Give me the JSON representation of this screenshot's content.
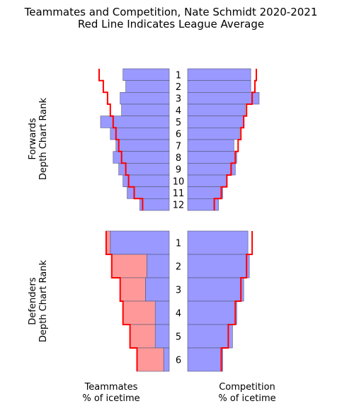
{
  "titles": {
    "line1": "Teammates and Competition, Nate Schmidt 2020-2021",
    "line2": "Red Line Indicates League Average"
  },
  "labels": {
    "forwards_line1": "Forwards",
    "forwards_line2": "Depth Chart Rank",
    "defenders_line1": "Defenders",
    "defenders_line2": "Depth Chart Rank",
    "teammates_line1": "Teammates",
    "teammates_line2": "% of icetime",
    "competition_line1": "Competition",
    "competition_line2": "% of icetime"
  },
  "colors": {
    "bar": "#9999ff",
    "bar_edge": "#555577",
    "excess": "#ff9999",
    "average_line": "#ff0000"
  },
  "chart_data": [
    {
      "type": "bar",
      "panel": "forwards",
      "categories": [
        "1",
        "2",
        "3",
        "4",
        "5",
        "6",
        "7",
        "8",
        "9",
        "10",
        "11",
        "12"
      ],
      "xlim": [
        0,
        1
      ],
      "series": [
        {
          "side": "teammates",
          "values": [
            0.33,
            0.31,
            0.35,
            0.34,
            0.49,
            0.42,
            0.38,
            0.4,
            0.36,
            0.33,
            0.3,
            0.21
          ]
        },
        {
          "side": "competition",
          "values": [
            0.45,
            0.45,
            0.51,
            0.41,
            0.4,
            0.37,
            0.33,
            0.35,
            0.34,
            0.28,
            0.25,
            0.22
          ]
        },
        {
          "side": "teammates_average",
          "values": [
            0.5,
            0.47,
            0.44,
            0.42,
            0.4,
            0.38,
            0.36,
            0.34,
            0.31,
            0.29,
            0.25,
            0.19
          ]
        },
        {
          "side": "competition_average",
          "values": [
            0.49,
            0.48,
            0.46,
            0.42,
            0.4,
            0.38,
            0.36,
            0.34,
            0.31,
            0.28,
            0.24,
            0.19
          ]
        }
      ]
    },
    {
      "type": "bar",
      "panel": "defenders",
      "categories": [
        "1",
        "2",
        "3",
        "4",
        "5",
        "6"
      ],
      "xlim": [
        0,
        1
      ],
      "series": [
        {
          "side": "teammates",
          "values": [
            0.42,
            0.16,
            0.17,
            0.1,
            0.1,
            0.04
          ]
        },
        {
          "side": "competition",
          "values": [
            0.43,
            0.44,
            0.4,
            0.35,
            0.32,
            0.25
          ]
        },
        {
          "side": "teammates_average",
          "values": [
            0.45,
            0.41,
            0.35,
            0.33,
            0.28,
            0.23
          ]
        },
        {
          "side": "competition_average",
          "values": [
            0.46,
            0.42,
            0.38,
            0.34,
            0.29,
            0.24
          ]
        }
      ]
    }
  ]
}
